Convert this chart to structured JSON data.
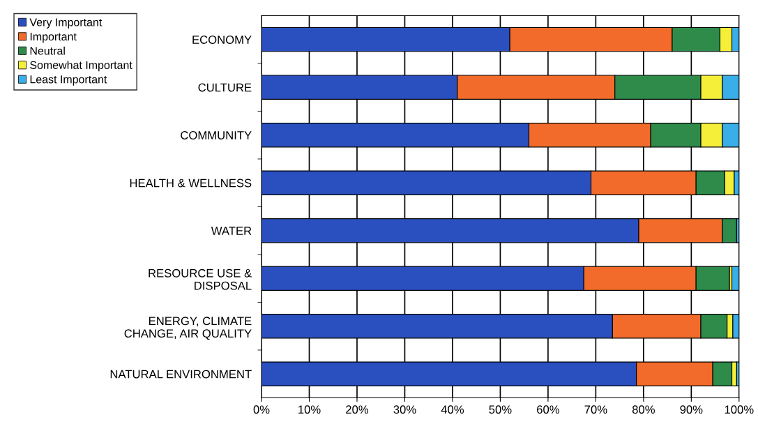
{
  "chart_data": {
    "type": "bar",
    "orientation": "horizontal",
    "stacked": true,
    "categories": [
      "ECONOMY",
      "CULTURE",
      "COMMUNITY",
      "HEALTH & WELLNESS",
      "WATER",
      "RESOURCE USE &\nDISPOSAL",
      "ENERGY, CLIMATE\nCHANGE, AIR QUALITY",
      "NATURAL ENVIRONMENT"
    ],
    "series": [
      {
        "name": "Very Important",
        "color": "#2a4fbf",
        "values": [
          52,
          41,
          56,
          69,
          79,
          67.5,
          73.5,
          78.5
        ]
      },
      {
        "name": "Important",
        "color": "#f26b2a",
        "values": [
          34,
          33,
          25.5,
          22,
          17.5,
          23.5,
          18.5,
          16
        ]
      },
      {
        "name": "Neutral",
        "color": "#2e8b4a",
        "values": [
          10,
          18,
          10.5,
          6,
          3,
          7,
          5.5,
          4
        ]
      },
      {
        "name": "Somewhat Important",
        "color": "#f5ef3a",
        "values": [
          2.5,
          4.5,
          4.5,
          2,
          0,
          0.5,
          1.2,
          1
        ]
      },
      {
        "name": "Least Important",
        "color": "#39aee8",
        "values": [
          1.5,
          3.5,
          3.5,
          1,
          0.5,
          1.5,
          1.3,
          0.5
        ]
      }
    ],
    "xlim": [
      0,
      100
    ],
    "xticks": [
      {
        "value": 0,
        "label": "0%"
      },
      {
        "value": 10,
        "label": "10%"
      },
      {
        "value": 20,
        "label": "20%"
      },
      {
        "value": 30,
        "label": "30%"
      },
      {
        "value": 40,
        "label": "40%"
      },
      {
        "value": 50,
        "label": "50%"
      },
      {
        "value": 60,
        "label": "60%"
      },
      {
        "value": 70,
        "label": "70%"
      },
      {
        "value": 80,
        "label": "80%"
      },
      {
        "value": 90,
        "label": "90%"
      },
      {
        "value": 100,
        "label": "100%"
      }
    ],
    "grid": "x",
    "legend": "top left"
  }
}
